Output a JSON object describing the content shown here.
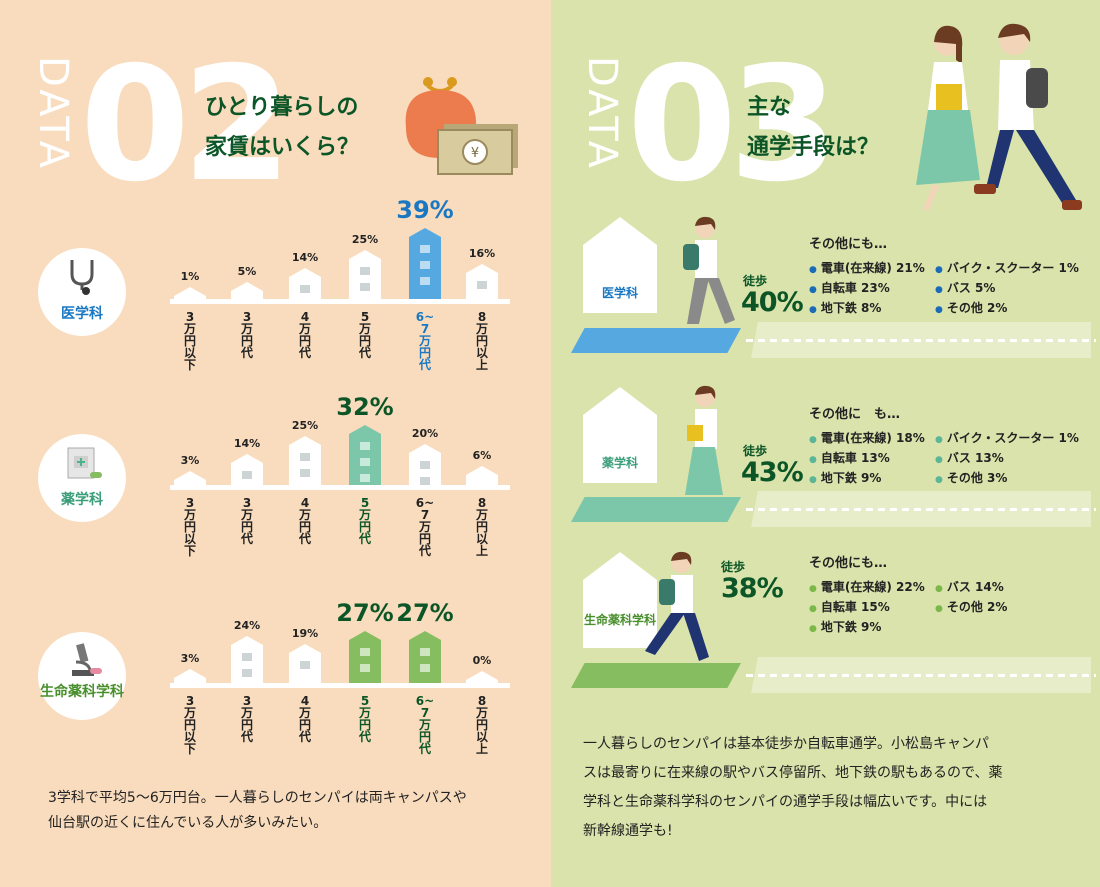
{
  "colors": {
    "left_bg": "#f9dcbd",
    "right_bg": "#d9e3ab",
    "blue": "#56a9e0",
    "teal": "#7cc7aa",
    "green": "#86bd60",
    "dark_green": "#0b5526",
    "blue_text": "#1a78c2"
  },
  "data02": {
    "data_label": "DATA",
    "number": "02",
    "title_line1": "ひとり暮らしの",
    "title_line2": "家賃はいくら？"
  },
  "data03": {
    "data_label": "DATA",
    "number": "03",
    "title_line1": "主な",
    "title_line2": "通学手段は？"
  },
  "chart_data": [
    {
      "type": "bar",
      "title": "医学科",
      "categories": [
        "3万円以下",
        "3万円代",
        "4万円代",
        "5万円代",
        "6~7万円代",
        "8万円以上"
      ],
      "values": [
        1,
        5,
        14,
        25,
        39,
        16
      ],
      "unit": "%",
      "highlight": [
        4
      ]
    },
    {
      "type": "bar",
      "title": "薬学科",
      "categories": [
        "3万円以下",
        "3万円代",
        "4万円代",
        "5万円代",
        "6~7万円代",
        "8万円以上"
      ],
      "values": [
        3,
        14,
        25,
        32,
        20,
        6
      ],
      "unit": "%",
      "highlight": [
        3
      ]
    },
    {
      "type": "bar",
      "title": "生命薬科学科",
      "categories": [
        "3万円以下",
        "3万円代",
        "4万円代",
        "5万円代",
        "6~7万円代",
        "8万円以上"
      ],
      "values": [
        3,
        24,
        19,
        27,
        27,
        0
      ],
      "unit": "%",
      "highlight": [
        3,
        4
      ]
    }
  ],
  "left_desc": {
    "line1": "3学科で平均5〜6万円台。一人暮らしのセンパイは両キャンパスや",
    "line2": "仙台駅の近くに住んでいる人が多いみたい。"
  },
  "transport": [
    {
      "dept": "医学科",
      "walk_label": "徒歩",
      "walk_value": "40%",
      "others_title": "その他にも…",
      "others": [
        "電車(在来線) 21%",
        "自転車 23%",
        "地下鉄 8%",
        "バイク・スクーター 1%",
        "バス 5%",
        "その他 2%"
      ]
    },
    {
      "dept": "薬学科",
      "walk_label": "徒歩",
      "walk_value": "43%",
      "others_title": "その他に　も…",
      "others": [
        "電車(在来線) 18%",
        "自転車 13%",
        "地下鉄 9%",
        "バイク・スクーター 1%",
        "バス 13%",
        "その他 3%"
      ]
    },
    {
      "dept": "生命薬科学科",
      "walk_label": "徒歩",
      "walk_value": "38%",
      "others_title": "その他にも…",
      "others": [
        "電車(在来線) 22%",
        "自転車 15%",
        "地下鉄 9%",
        "バス 14%",
        "その他 2%"
      ]
    }
  ],
  "right_desc": {
    "line1": "一人暮らしのセンパイは基本徒歩か自転車通学。小松島キャンパ",
    "line2": "スは最寄りに在来線の駅やバス停留所、地下鉄の駅もあるので、薬",
    "line3": "学科と生命薬科学科のセンパイの通学手段は幅広いです。中には",
    "line4": "新幹線通学も!"
  }
}
